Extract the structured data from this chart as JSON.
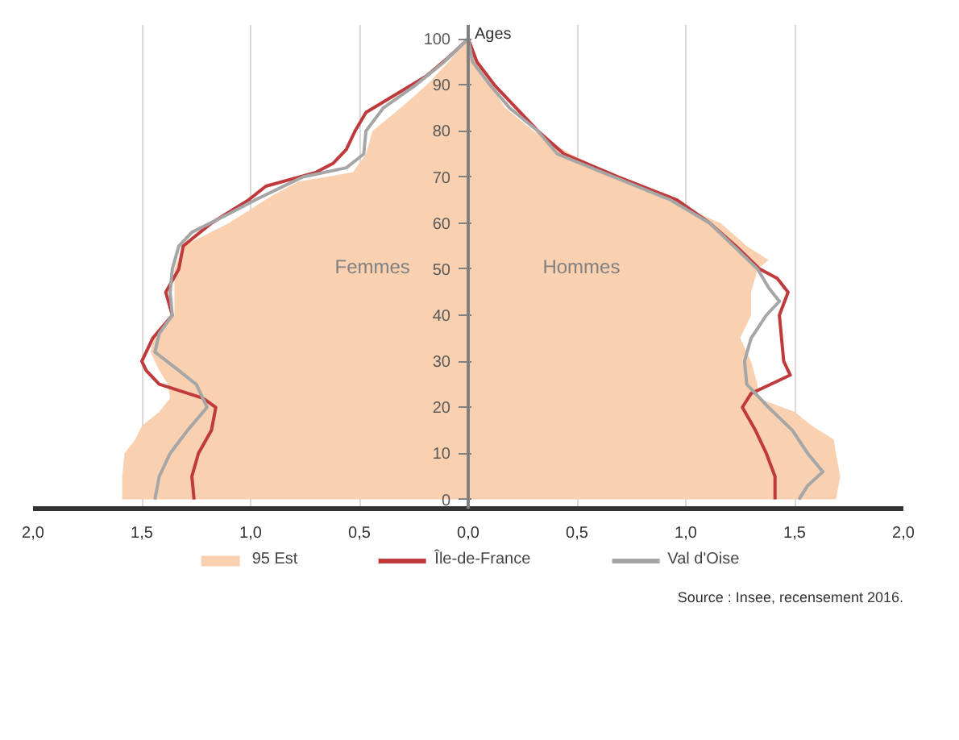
{
  "chart_data": {
    "type": "area",
    "orientation": "horizontal",
    "ylabel": "Ages",
    "xlim": [
      -2,
      2
    ],
    "xticks": [
      {
        "value": -2,
        "label": "2,0"
      },
      {
        "value": -1.5,
        "label": "1,5"
      },
      {
        "value": -1,
        "label": "1,0"
      },
      {
        "value": -0.5,
        "label": "0,5"
      },
      {
        "value": 0,
        "label": "0,0"
      },
      {
        "value": 0.5,
        "label": "0,5"
      },
      {
        "value": 1,
        "label": "1,0"
      },
      {
        "value": 1.5,
        "label": "1,5"
      },
      {
        "value": 2,
        "label": "2,0"
      }
    ],
    "ylim": [
      -2,
      103
    ],
    "yticks": [
      0,
      10,
      20,
      30,
      40,
      50,
      60,
      70,
      80,
      90,
      100
    ],
    "grid": "x",
    "legend": "bottom",
    "series": [
      {
        "name": "95 Est",
        "color": "#f9d0b0",
        "x": [
          0,
          5,
          10,
          13,
          16,
          19,
          22,
          25,
          28,
          32,
          36,
          40,
          45,
          50,
          55,
          60,
          63,
          66,
          69,
          71,
          75,
          80,
          85,
          90,
          95,
          100
        ],
        "values": [
          -1.59,
          -1.59,
          -1.58,
          -1.53,
          -1.5,
          -1.42,
          -1.37,
          -1.38,
          -1.42,
          -1.46,
          -1.44,
          -1.35,
          -1.35,
          -1.35,
          -1.31,
          -1.1,
          -1.0,
          -0.9,
          -0.78,
          -0.53,
          -0.47,
          -0.44,
          -0.31,
          -0.19,
          -0.09,
          0
        ]
      },
      {
        "color": "#f9d0b0",
        "x": [
          0,
          5,
          10,
          13,
          16,
          19,
          22,
          25,
          30,
          35,
          40,
          45,
          50,
          52,
          55,
          60,
          65,
          68,
          70,
          75,
          80,
          85,
          90,
          95,
          100
        ],
        "values": [
          1.69,
          1.71,
          1.69,
          1.68,
          1.58,
          1.5,
          1.33,
          1.33,
          1.3,
          1.25,
          1.3,
          1.3,
          1.33,
          1.38,
          1.28,
          1.16,
          0.91,
          0.76,
          0.69,
          0.47,
          0.3,
          0.17,
          0.1,
          0.04,
          0
        ]
      },
      {
        "name": "Île-de-France",
        "type": "line",
        "color": "#c0393b",
        "x": [
          0,
          5,
          10,
          15,
          20,
          22,
          25,
          28,
          30,
          35,
          40,
          45,
          50,
          55,
          60,
          65,
          68,
          71,
          73,
          76,
          80,
          84,
          88,
          92,
          96,
          100
        ],
        "values": [
          -1.26,
          -1.27,
          -1.24,
          -1.18,
          -1.16,
          -1.22,
          -1.42,
          -1.48,
          -1.5,
          -1.45,
          -1.36,
          -1.39,
          -1.33,
          -1.31,
          -1.18,
          -1.01,
          -0.93,
          -0.7,
          -0.62,
          -0.56,
          -0.52,
          -0.47,
          -0.33,
          -0.19,
          -0.09,
          0
        ]
      },
      {
        "type": "line",
        "color": "#c0393b",
        "x": [
          0,
          5,
          10,
          15,
          20,
          23,
          25,
          27,
          30,
          35,
          40,
          45,
          48,
          50,
          55,
          60,
          65,
          70,
          75,
          80,
          85,
          90,
          95,
          100
        ],
        "values": [
          1.41,
          1.41,
          1.37,
          1.32,
          1.26,
          1.3,
          1.39,
          1.48,
          1.45,
          1.44,
          1.43,
          1.47,
          1.42,
          1.34,
          1.23,
          1.11,
          0.96,
          0.69,
          0.44,
          0.32,
          0.22,
          0.12,
          0.04,
          0
        ]
      },
      {
        "name": "Val d'Oise",
        "type": "line",
        "color": "#a6a6a6",
        "x": [
          0,
          5,
          10,
          15,
          20,
          25,
          28,
          32,
          36,
          40,
          45,
          50,
          55,
          58,
          62,
          65,
          70,
          72,
          75,
          80,
          85,
          90,
          95,
          100
        ],
        "values": [
          -1.44,
          -1.42,
          -1.37,
          -1.29,
          -1.2,
          -1.25,
          -1.33,
          -1.44,
          -1.42,
          -1.36,
          -1.37,
          -1.36,
          -1.33,
          -1.27,
          -1.1,
          -0.98,
          -0.76,
          -0.56,
          -0.48,
          -0.47,
          -0.39,
          -0.24,
          -0.11,
          0
        ]
      },
      {
        "type": "line",
        "color": "#a6a6a6",
        "x": [
          0,
          3,
          6,
          10,
          15,
          20,
          25,
          30,
          35,
          40,
          43,
          46,
          50,
          55,
          60,
          65,
          70,
          75,
          80,
          85,
          90,
          95,
          100
        ],
        "values": [
          1.52,
          1.56,
          1.63,
          1.56,
          1.49,
          1.38,
          1.28,
          1.27,
          1.3,
          1.37,
          1.43,
          1.38,
          1.33,
          1.22,
          1.11,
          0.93,
          0.67,
          0.41,
          0.32,
          0.19,
          0.1,
          0.02,
          0
        ]
      }
    ],
    "annotations": [
      "Femmes",
      "Hommes",
      "Source : Insee, recensement 2016."
    ]
  }
}
